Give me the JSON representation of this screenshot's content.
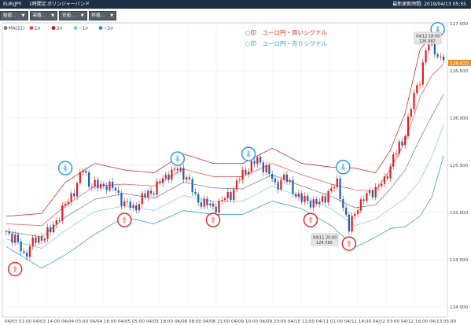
{
  "header": {
    "symbol": "EUR/JPY",
    "timeframe": "1時間足",
    "indicator_name": "ボリンジャーバンド",
    "last_updated": "最新更新時間: 2019/04/13 05:55"
  },
  "toolbar": [
    "始値…",
    "高値…",
    "安値…",
    "終値…"
  ],
  "legend": [
    {
      "label": "MA(21)",
      "color": "#777777"
    },
    {
      "label": "1σ",
      "color": "#e84a4a"
    },
    {
      "label": "2σ",
      "color": "#cc1111"
    },
    {
      "label": "−1σ",
      "color": "#7ec4ec"
    },
    {
      "label": "−2σ",
      "color": "#2a8fd8"
    }
  ],
  "annotations": {
    "buy_signal": "○印　ユーロ円・買いシグナル",
    "sell_signal": "○印　ユーロ円・売りシグナル",
    "buy_color": "#e03030",
    "sell_color": "#2e9be0"
  },
  "current_price": "126.633",
  "tooltip_high": {
    "line1": "04/12 18:00",
    "line2": "126.982"
  },
  "tooltip_low": {
    "line1": "04/11 20:00",
    "line2": "124.780"
  },
  "chart_data": {
    "type": "candlestick",
    "y_ticks": [
      "124.000",
      "124.500",
      "125.000",
      "125.500",
      "126.000",
      "126.500",
      "127.000"
    ],
    "ylim": [
      124.0,
      127.0
    ],
    "x_ticks": [
      "04/03 01:00",
      "04/03 14:00",
      "04/04 03:00",
      "04/04 16:00",
      "04/05 05:00",
      "04/05 18:00",
      "04/08 08:00",
      "04/08 21:00",
      "04/09 10:00",
      "04/09 23:00",
      "04/10 12:00",
      "04/11 01:00",
      "04/11 14:00",
      "04/12 03:00",
      "04/12 16:00",
      "04/13 05:00"
    ],
    "series_keypoints": {
      "close": [
        [
          0,
          124.8
        ],
        [
          3,
          124.72
        ],
        [
          6,
          124.55
        ],
        [
          9,
          124.68
        ],
        [
          12,
          124.74
        ],
        [
          15,
          124.8
        ],
        [
          18,
          124.98
        ],
        [
          21,
          125.12
        ],
        [
          24,
          125.3
        ],
        [
          26,
          125.46
        ],
        [
          28,
          125.32
        ],
        [
          31,
          125.27
        ],
        [
          34,
          125.3
        ],
        [
          37,
          125.23
        ],
        [
          40,
          125.1
        ],
        [
          43,
          125.04
        ],
        [
          46,
          125.15
        ],
        [
          49,
          125.22
        ],
        [
          52,
          125.31
        ],
        [
          55,
          125.42
        ],
        [
          58,
          125.45
        ],
        [
          61,
          125.39
        ],
        [
          64,
          125.15
        ],
        [
          67,
          125.1
        ],
        [
          70,
          125.05
        ],
        [
          73,
          125.12
        ],
        [
          76,
          125.2
        ],
        [
          79,
          125.36
        ],
        [
          82,
          125.48
        ],
        [
          85,
          125.55
        ],
        [
          88,
          125.47
        ],
        [
          91,
          125.28
        ],
        [
          94,
          125.38
        ],
        [
          97,
          125.24
        ],
        [
          100,
          125.13
        ],
        [
          103,
          125.12
        ],
        [
          106,
          125.09
        ],
        [
          109,
          125.22
        ],
        [
          112,
          125.3
        ],
        [
          114,
          125.08
        ],
        [
          116,
          124.82
        ],
        [
          119,
          125.08
        ],
        [
          122,
          125.17
        ],
        [
          125,
          125.26
        ],
        [
          128,
          125.32
        ],
        [
          131,
          125.6
        ],
        [
          134,
          125.73
        ],
        [
          137,
          126.12
        ],
        [
          140,
          126.42
        ],
        [
          142,
          126.73
        ],
        [
          144,
          126.8
        ],
        [
          146,
          126.66
        ],
        [
          148,
          126.63
        ]
      ],
      "ma21": [
        [
          0,
          124.8
        ],
        [
          12,
          124.74
        ],
        [
          20,
          124.95
        ],
        [
          30,
          125.14
        ],
        [
          40,
          125.2
        ],
        [
          50,
          125.15
        ],
        [
          60,
          125.32
        ],
        [
          70,
          125.26
        ],
        [
          80,
          125.25
        ],
        [
          90,
          125.4
        ],
        [
          100,
          125.28
        ],
        [
          110,
          125.17
        ],
        [
          118,
          125.05
        ],
        [
          125,
          125.08
        ],
        [
          130,
          125.25
        ],
        [
          135,
          125.45
        ],
        [
          140,
          125.78
        ],
        [
          144,
          126.02
        ],
        [
          148,
          126.25
        ]
      ],
      "sigma1": [
        [
          0,
          124.88
        ],
        [
          12,
          124.86
        ],
        [
          20,
          125.07
        ],
        [
          30,
          125.28
        ],
        [
          40,
          125.3
        ],
        [
          50,
          125.28
        ],
        [
          60,
          125.46
        ],
        [
          70,
          125.38
        ],
        [
          80,
          125.38
        ],
        [
          90,
          125.52
        ],
        [
          100,
          125.4
        ],
        [
          110,
          125.3
        ],
        [
          118,
          125.24
        ],
        [
          125,
          125.23
        ],
        [
          130,
          125.46
        ],
        [
          135,
          125.75
        ],
        [
          140,
          126.22
        ],
        [
          144,
          126.45
        ],
        [
          148,
          126.57
        ]
      ],
      "sigma2": [
        [
          0,
          124.96
        ],
        [
          12,
          124.99
        ],
        [
          20,
          125.32
        ],
        [
          30,
          125.52
        ],
        [
          40,
          125.45
        ],
        [
          50,
          125.42
        ],
        [
          60,
          125.62
        ],
        [
          70,
          125.52
        ],
        [
          80,
          125.52
        ],
        [
          90,
          125.68
        ],
        [
          100,
          125.52
        ],
        [
          110,
          125.48
        ],
        [
          118,
          125.47
        ],
        [
          125,
          125.42
        ],
        [
          130,
          125.66
        ],
        [
          135,
          126.05
        ],
        [
          140,
          126.72
        ],
        [
          144,
          126.88
        ],
        [
          148,
          126.92
        ]
      ],
      "sigma_minus1": [
        [
          0,
          124.72
        ],
        [
          12,
          124.62
        ],
        [
          20,
          124.81
        ],
        [
          30,
          125.01
        ],
        [
          40,
          125.07
        ],
        [
          50,
          125.02
        ],
        [
          60,
          125.18
        ],
        [
          70,
          125.12
        ],
        [
          80,
          125.12
        ],
        [
          90,
          125.28
        ],
        [
          100,
          125.16
        ],
        [
          110,
          125.04
        ],
        [
          118,
          124.86
        ],
        [
          125,
          124.93
        ],
        [
          130,
          125.04
        ],
        [
          135,
          125.15
        ],
        [
          140,
          125.34
        ],
        [
          144,
          125.59
        ],
        [
          148,
          125.93
        ]
      ],
      "sigma_minus2": [
        [
          0,
          124.64
        ],
        [
          12,
          124.41
        ],
        [
          20,
          124.55
        ],
        [
          30,
          124.77
        ],
        [
          40,
          124.95
        ],
        [
          50,
          124.88
        ],
        [
          60,
          125.02
        ],
        [
          70,
          124.98
        ],
        [
          80,
          124.98
        ],
        [
          90,
          125.12
        ],
        [
          100,
          125.04
        ],
        [
          110,
          124.86
        ],
        [
          118,
          124.63
        ],
        [
          125,
          124.74
        ],
        [
          130,
          124.83
        ],
        [
          135,
          124.85
        ],
        [
          140,
          124.96
        ],
        [
          144,
          125.16
        ],
        [
          148,
          125.6
        ]
      ]
    },
    "buy_signals": [
      [
        3,
        124.4
      ],
      [
        40,
        124.92
      ],
      [
        70,
        124.92
      ],
      [
        103,
        124.92
      ],
      [
        116,
        124.67
      ]
    ],
    "sell_signals": [
      [
        20,
        125.47
      ],
      [
        58,
        125.57
      ],
      [
        82,
        125.62
      ],
      [
        114,
        125.48
      ],
      [
        146,
        126.94
      ]
    ]
  }
}
